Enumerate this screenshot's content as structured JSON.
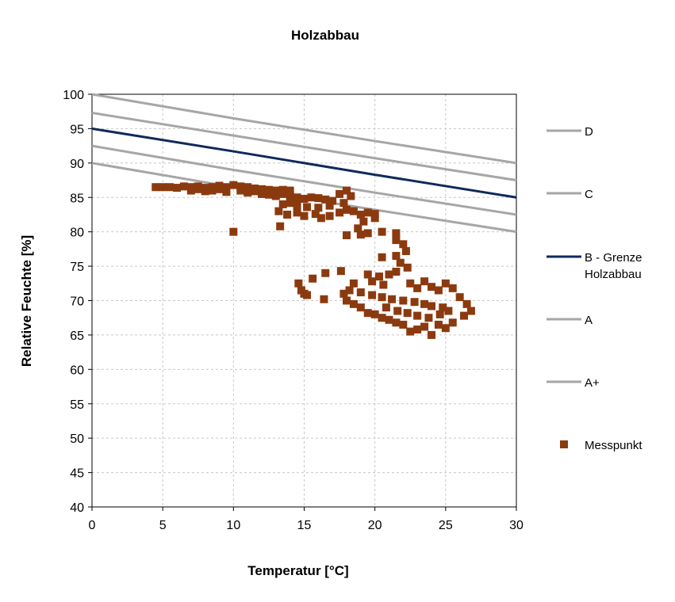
{
  "chart_data": {
    "type": "scatter",
    "title": "Holzabbau",
    "xlabel": "Temperatur [°C]",
    "ylabel": "Relative Feuchte [%]",
    "xlim": [
      0,
      30
    ],
    "ylim": [
      40,
      100
    ],
    "x_ticks": [
      0,
      5,
      10,
      15,
      20,
      25,
      30
    ],
    "y_ticks": [
      40,
      45,
      50,
      55,
      60,
      65,
      70,
      75,
      80,
      85,
      90,
      95,
      100
    ],
    "grid": true,
    "legend_position": "right",
    "series": [
      {
        "name": "D",
        "kind": "line",
        "color": "#a6a6a6",
        "x": [
          0,
          10,
          20,
          30
        ],
        "y": [
          100,
          96.5,
          93.2,
          90
        ]
      },
      {
        "name": "C",
        "kind": "line",
        "color": "#a6a6a6",
        "x": [
          0,
          10,
          20,
          30
        ],
        "y": [
          97.3,
          94,
          90.7,
          87.5
        ]
      },
      {
        "name": "B - Grenze Holzabbau",
        "kind": "line",
        "color": "#0f2a5a",
        "x": [
          0,
          10,
          20,
          30
        ],
        "y": [
          95,
          91.7,
          88.3,
          85
        ]
      },
      {
        "name": "A",
        "kind": "line",
        "color": "#a6a6a6",
        "x": [
          0,
          10,
          20,
          30
        ],
        "y": [
          92.5,
          89,
          85.7,
          82.5
        ]
      },
      {
        "name": "A+",
        "kind": "line",
        "color": "#a6a6a6",
        "x": [
          0,
          10,
          20,
          30
        ],
        "y": [
          90,
          86.5,
          83.2,
          80
        ]
      },
      {
        "name": "Messpunkt",
        "kind": "scatter",
        "color": "#8b3a0f",
        "points": [
          [
            4.5,
            86.5
          ],
          [
            5,
            86.5
          ],
          [
            5.5,
            86.5
          ],
          [
            6,
            86.4
          ],
          [
            6.5,
            86.6
          ],
          [
            7,
            86.5
          ],
          [
            7.5,
            86.6
          ],
          [
            8,
            86.4
          ],
          [
            8.5,
            86.5
          ],
          [
            9,
            86.7
          ],
          [
            9.5,
            86.5
          ],
          [
            10,
            86.8
          ],
          [
            10.5,
            86.6
          ],
          [
            11,
            86.5
          ],
          [
            11.5,
            86.3
          ],
          [
            12,
            86.2
          ],
          [
            12.5,
            86.1
          ],
          [
            13,
            86
          ],
          [
            13.5,
            86.1
          ],
          [
            14,
            86
          ],
          [
            7,
            86
          ],
          [
            7.5,
            86.2
          ],
          [
            8,
            85.9
          ],
          [
            8.5,
            86
          ],
          [
            9,
            86.2
          ],
          [
            9.5,
            85.8
          ],
          [
            10.5,
            86
          ],
          [
            11,
            85.7
          ],
          [
            11.5,
            85.9
          ],
          [
            12,
            85.5
          ],
          [
            12.5,
            85.4
          ],
          [
            13,
            85.2
          ],
          [
            13.5,
            85.5
          ],
          [
            14,
            85.3
          ],
          [
            14.5,
            85
          ],
          [
            15,
            84.8
          ],
          [
            15.5,
            85
          ],
          [
            16,
            84.9
          ],
          [
            16.5,
            84.7
          ],
          [
            17,
            84.5
          ],
          [
            17.5,
            85.5
          ],
          [
            18,
            86
          ],
          [
            18.3,
            85.2
          ],
          [
            17.8,
            84.2
          ],
          [
            16.8,
            83.8
          ],
          [
            16,
            83.5
          ],
          [
            15.2,
            83.6
          ],
          [
            14.5,
            83.9
          ],
          [
            14,
            84.2
          ],
          [
            13.5,
            84
          ],
          [
            13.2,
            83
          ],
          [
            13.8,
            82.5
          ],
          [
            14.5,
            82.8
          ],
          [
            15,
            82.3
          ],
          [
            15.8,
            82.6
          ],
          [
            16.2,
            82
          ],
          [
            16.8,
            82.3
          ],
          [
            17.5,
            82.8
          ],
          [
            18,
            83.2
          ],
          [
            18.5,
            83
          ],
          [
            19,
            82.5
          ],
          [
            19.5,
            82.8
          ],
          [
            20,
            82.6
          ],
          [
            20,
            82
          ],
          [
            19.2,
            81.5
          ],
          [
            18.8,
            80.5
          ],
          [
            13.3,
            80.8
          ],
          [
            10,
            80
          ],
          [
            18,
            79.5
          ],
          [
            19,
            79.6
          ],
          [
            19.5,
            79.8
          ],
          [
            20.5,
            80
          ],
          [
            21.5,
            79.8
          ],
          [
            21.5,
            78.8
          ],
          [
            22,
            78.2
          ],
          [
            22.2,
            77.2
          ],
          [
            20.5,
            76.3
          ],
          [
            21.5,
            76.5
          ],
          [
            21.8,
            75.5
          ],
          [
            22.3,
            74.8
          ],
          [
            21.5,
            74.2
          ],
          [
            20.3,
            73.5
          ],
          [
            21,
            73.8
          ],
          [
            19.8,
            72.8
          ],
          [
            20.6,
            72.3
          ],
          [
            22.5,
            72.5
          ],
          [
            23,
            71.8
          ],
          [
            23.5,
            72.8
          ],
          [
            24,
            72
          ],
          [
            24.5,
            71.5
          ],
          [
            25,
            72.5
          ],
          [
            25.5,
            71.8
          ],
          [
            26,
            70.5
          ],
          [
            26.5,
            69.5
          ],
          [
            26.8,
            68.5
          ],
          [
            26.3,
            67.8
          ],
          [
            25.5,
            66.8
          ],
          [
            25,
            66
          ],
          [
            24.5,
            66.5
          ],
          [
            24,
            65
          ],
          [
            23.5,
            66.2
          ],
          [
            23,
            65.8
          ],
          [
            22.5,
            65.5
          ],
          [
            22,
            66.5
          ],
          [
            21.5,
            66.8
          ],
          [
            21,
            67.2
          ],
          [
            20.5,
            67.5
          ],
          [
            20,
            68
          ],
          [
            19.5,
            68.2
          ],
          [
            19,
            69
          ],
          [
            18.5,
            69.5
          ],
          [
            18,
            70
          ],
          [
            17.8,
            71
          ],
          [
            18.2,
            71.5
          ],
          [
            19,
            71.2
          ],
          [
            19.8,
            70.8
          ],
          [
            20.5,
            70.5
          ],
          [
            21.2,
            70.2
          ],
          [
            22,
            70
          ],
          [
            22.8,
            69.8
          ],
          [
            23.5,
            69.5
          ],
          [
            24,
            69.2
          ],
          [
            24.8,
            69
          ],
          [
            25.2,
            68.5
          ],
          [
            24.6,
            68
          ],
          [
            23.8,
            67.5
          ],
          [
            23,
            67.8
          ],
          [
            22.3,
            68.2
          ],
          [
            21.6,
            68.5
          ],
          [
            20.8,
            69
          ],
          [
            14.6,
            72.5
          ],
          [
            14.8,
            71.5
          ],
          [
            15,
            71
          ],
          [
            15.2,
            70.8
          ],
          [
            15.6,
            73.2
          ],
          [
            16.5,
            74
          ],
          [
            16.4,
            70.2
          ],
          [
            17.6,
            74.3
          ],
          [
            18.5,
            72.5
          ],
          [
            19.5,
            73.8
          ]
        ]
      }
    ]
  },
  "legend": [
    {
      "label": "D",
      "symbol": "line",
      "color": "#a6a6a6"
    },
    {
      "label": "C",
      "symbol": "line",
      "color": "#a6a6a6"
    },
    {
      "label_lines": [
        "B - Grenze",
        "Holzabbau"
      ],
      "symbol": "line",
      "color": "#0f2a5a"
    },
    {
      "label": "A",
      "symbol": "line",
      "color": "#a6a6a6"
    },
    {
      "label": "A+",
      "symbol": "line",
      "color": "#a6a6a6"
    },
    {
      "label": "Messpunkt",
      "symbol": "square",
      "color": "#8b3a0f"
    }
  ]
}
